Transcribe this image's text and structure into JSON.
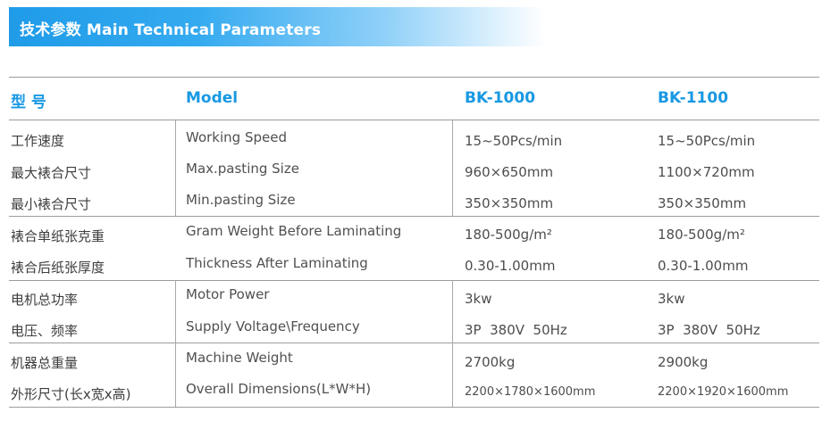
{
  "banner": {
    "title": "技术参数  Main Technical Parameters"
  },
  "header": {
    "col1": "型 号",
    "col2": "Model",
    "col3": "BK-1000",
    "col4": "BK-1100"
  },
  "rows": [
    {
      "zh": "工作速度",
      "en": "Working Speed",
      "v1": "15~50Pcs/min",
      "v2": "15~50Pcs/min"
    },
    {
      "zh": "最大裱合尺寸",
      "en": "Max.pasting Size",
      "v1": "960×650mm",
      "v2": "1100×720mm"
    },
    {
      "zh": "最小裱合尺寸",
      "en": "Min.pasting Size",
      "v1": "350×350mm",
      "v2": "350×350mm"
    },
    {
      "zh": "裱合单纸张克重",
      "en": "Gram Weight Before Laminating",
      "v1": "180-500g/m²",
      "v2": "180-500g/m²"
    },
    {
      "zh": "裱合后纸张厚度",
      "en": "Thickness After Laminating",
      "v1": "0.30-1.00mm",
      "v2": "0.30-1.00mm"
    },
    {
      "zh": "电机总功率",
      "en": "Motor Power",
      "v1": "3kw",
      "v2": "3kw"
    },
    {
      "zh": "电压、频率",
      "en": "Supply Voltage\\Frequency",
      "v1": "3P  380V  50Hz",
      "v2": "3P  380V  50Hz"
    },
    {
      "zh": "机器总重量",
      "en": "Machine Weight",
      "v1": "2700kg",
      "v2": "2900kg"
    },
    {
      "zh": "外形尺寸(长x宽x高)",
      "en": "Overall Dimensions(L*W*H)",
      "v1": "2200×1780×1600mm",
      "v2": "2200×1920×1600mm"
    }
  ],
  "colors": {
    "accent": "#1898e3",
    "rule": "#9c9c9c"
  }
}
